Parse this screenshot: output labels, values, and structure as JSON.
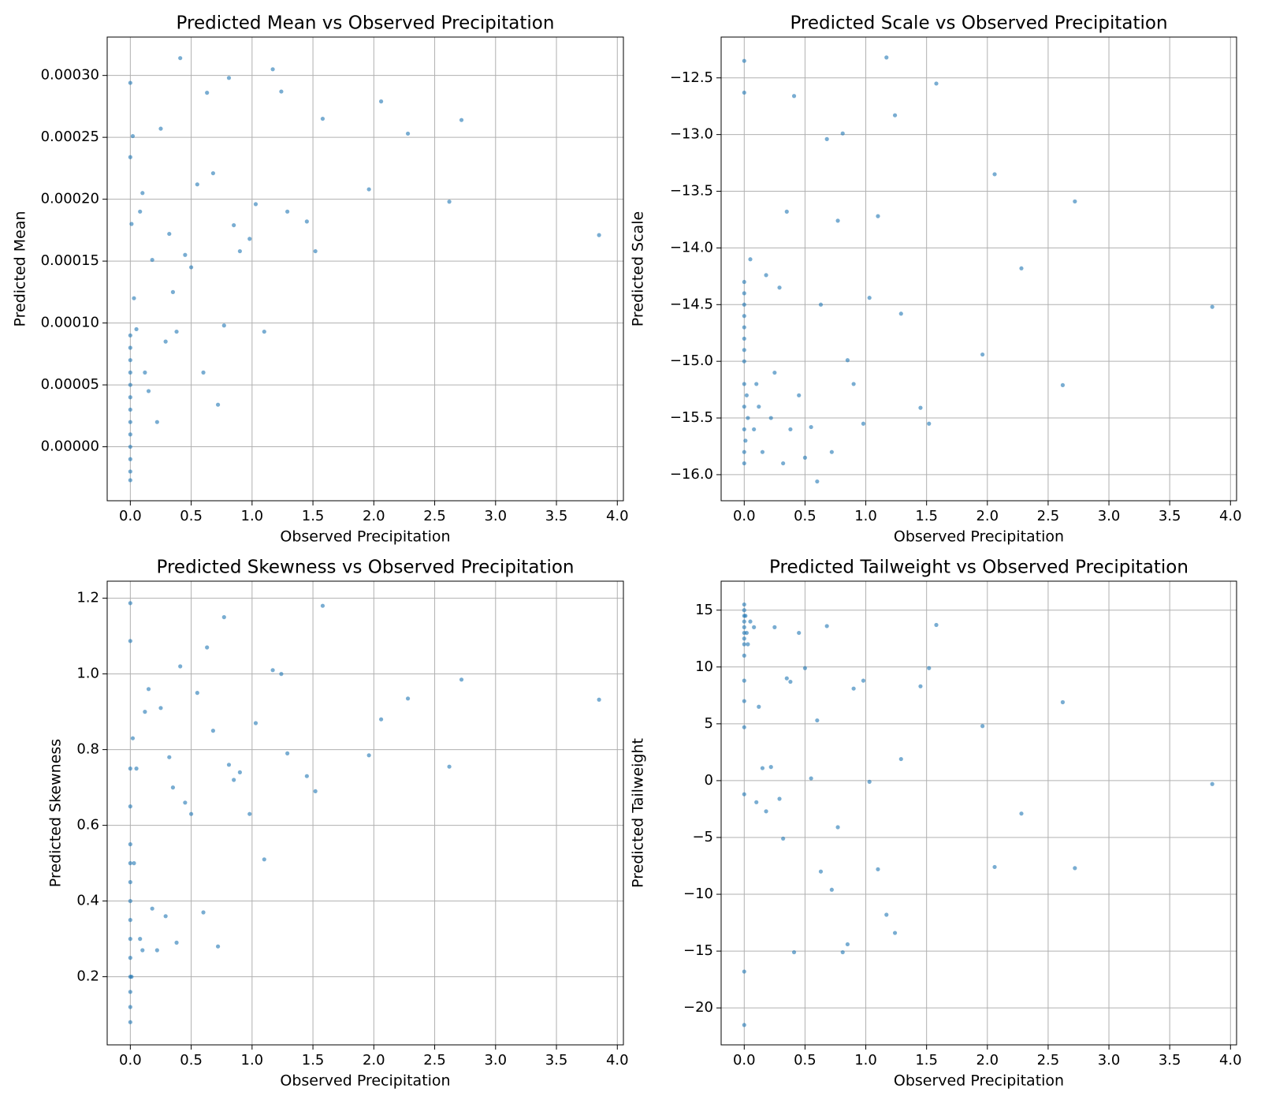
{
  "chart_data": [
    {
      "type": "scatter",
      "title": "Predicted Mean vs Observed Precipitation",
      "x_label": "Observed Precipitation",
      "y_label": "Predicted Mean",
      "color": "#1f77b4",
      "grid": true,
      "xlim": [
        -0.19,
        4.05
      ],
      "ylim": [
        -4.36e-05,
        0.000331
      ],
      "xticks": [
        {
          "value": 0,
          "label": "0.0"
        },
        0.5,
        {
          "value": 1,
          "label": "1.0"
        },
        1.5,
        {
          "value": 2,
          "label": "2.0"
        },
        2.5,
        {
          "value": 3,
          "label": "3.0"
        },
        3.5,
        {
          "value": 4,
          "label": "4.0"
        }
      ],
      "yticks": [
        {
          "value": 0,
          "label": "0.00000"
        },
        {
          "value": 5e-05,
          "label": "0.00005"
        },
        {
          "value": 0.0001,
          "label": "0.00010"
        },
        {
          "value": 0.00015,
          "label": "0.00015"
        },
        {
          "value": 0.0002,
          "label": "0.00020"
        },
        {
          "value": 0.00025,
          "label": "0.00025"
        },
        {
          "value": 0.0003,
          "label": "0.00030"
        }
      ],
      "x": [
        0,
        0,
        0,
        0,
        0,
        0,
        0,
        0,
        0,
        0,
        0,
        0,
        0,
        0,
        0,
        0.01,
        0.02,
        0.03,
        0.05,
        0.08,
        0.1,
        0.12,
        0.15,
        0.18,
        0.22,
        0.25,
        0.29,
        0.32,
        0.35,
        0.38,
        0.41,
        0.45,
        0.5,
        0.55,
        0.6,
        0.63,
        0.68,
        0.72,
        0.77,
        0.81,
        0.85,
        0.9,
        0.98,
        1.03,
        1.1,
        1.17,
        1.24,
        1.29,
        1.45,
        1.52,
        1.58,
        1.96,
        2.06,
        2.28,
        2.62,
        2.72,
        3.85
      ],
      "values": [
        -2.7e-05,
        -2e-05,
        -1e-05,
        0,
        1e-05,
        2e-05,
        3e-05,
        4e-05,
        5e-05,
        6e-05,
        7e-05,
        8e-05,
        9e-05,
        0.000234,
        0.000294,
        0.00018,
        0.000251,
        0.00012,
        9.5e-05,
        0.00019,
        0.000205,
        6e-05,
        4.5e-05,
        0.000151,
        2e-05,
        0.000257,
        8.5e-05,
        0.000172,
        0.000125,
        9.3e-05,
        0.000314,
        0.000155,
        0.000145,
        0.000212,
        6e-05,
        0.000286,
        0.000221,
        3.4e-05,
        9.8e-05,
        0.000298,
        0.000179,
        0.000158,
        0.000168,
        0.000196,
        9.3e-05,
        0.000305,
        0.000287,
        0.00019,
        0.000182,
        0.000158,
        0.000265,
        0.000208,
        0.000279,
        0.000253,
        0.000198,
        0.000264,
        0.000171
      ]
    },
    {
      "type": "scatter",
      "title": "Predicted Scale vs Observed Precipitation",
      "x_label": "Observed Precipitation",
      "y_label": "Predicted Scale",
      "color": "#1f77b4",
      "grid": true,
      "xlim": [
        -0.19,
        4.05
      ],
      "ylim": [
        -16.23,
        -12.14
      ],
      "xticks": [
        {
          "value": 0,
          "label": "0.0"
        },
        0.5,
        {
          "value": 1,
          "label": "1.0"
        },
        1.5,
        {
          "value": 2,
          "label": "2.0"
        },
        2.5,
        {
          "value": 3,
          "label": "3.0"
        },
        3.5,
        {
          "value": 4,
          "label": "4.0"
        }
      ],
      "yticks": [
        {
          "value": -16,
          "label": "−16.0"
        },
        {
          "value": -15.5,
          "label": "−15.5"
        },
        {
          "value": -15,
          "label": "−15.0"
        },
        {
          "value": -14.5,
          "label": "−14.5"
        },
        {
          "value": -14,
          "label": "−14.0"
        },
        {
          "value": -13.5,
          "label": "−13.5"
        },
        {
          "value": -13,
          "label": "−13.0"
        },
        {
          "value": -12.5,
          "label": "−12.5"
        }
      ],
      "x": [
        0,
        0,
        0,
        0,
        0,
        0,
        0,
        0,
        0,
        0,
        0,
        0,
        0,
        0,
        0,
        0.01,
        0.02,
        0.03,
        0.05,
        0.08,
        0.1,
        0.12,
        0.15,
        0.18,
        0.22,
        0.25,
        0.29,
        0.32,
        0.35,
        0.38,
        0.41,
        0.45,
        0.5,
        0.55,
        0.6,
        0.63,
        0.68,
        0.72,
        0.77,
        0.81,
        0.85,
        0.9,
        0.98,
        1.03,
        1.1,
        1.17,
        1.24,
        1.29,
        1.45,
        1.52,
        1.58,
        1.96,
        2.06,
        2.28,
        2.62,
        2.72,
        3.85
      ],
      "values": [
        -15.9,
        -15.8,
        -15.6,
        -15.4,
        -15.2,
        -15.0,
        -14.9,
        -14.8,
        -14.7,
        -14.6,
        -14.5,
        -14.4,
        -14.3,
        -12.63,
        -12.35,
        -15.7,
        -15.3,
        -15.5,
        -14.1,
        -15.6,
        -15.2,
        -15.4,
        -15.8,
        -14.24,
        -15.5,
        -15.1,
        -14.35,
        -15.9,
        -13.68,
        -15.6,
        -12.66,
        -15.3,
        -15.85,
        -15.58,
        -16.06,
        -14.5,
        -13.04,
        -15.8,
        -13.76,
        -12.99,
        -14.99,
        -15.2,
        -15.55,
        -14.44,
        -13.72,
        -12.32,
        -12.83,
        -14.58,
        -15.41,
        -15.55,
        -12.55,
        -14.94,
        -13.35,
        -14.18,
        -15.21,
        -13.59,
        -14.52
      ]
    },
    {
      "type": "scatter",
      "title": "Predicted Skewness vs Observed Precipitation",
      "x_label": "Observed Precipitation",
      "y_label": "Predicted Skewness",
      "color": "#1f77b4",
      "grid": true,
      "xlim": [
        -0.19,
        4.05
      ],
      "ylim": [
        0.02,
        1.245
      ],
      "xticks": [
        {
          "value": 0,
          "label": "0.0"
        },
        0.5,
        {
          "value": 1,
          "label": "1.0"
        },
        1.5,
        {
          "value": 2,
          "label": "2.0"
        },
        2.5,
        {
          "value": 3,
          "label": "3.0"
        },
        3.5,
        {
          "value": 4,
          "label": "4.0"
        }
      ],
      "yticks": [
        0.2,
        0.4,
        0.6,
        0.8,
        {
          "value": 1,
          "label": "1.0"
        },
        1.2
      ],
      "x": [
        0,
        0,
        0,
        0,
        0,
        0,
        0,
        0,
        0,
        0,
        0,
        0,
        0,
        0,
        0,
        0.01,
        0.02,
        0.03,
        0.05,
        0.08,
        0.1,
        0.12,
        0.15,
        0.18,
        0.22,
        0.25,
        0.29,
        0.32,
        0.35,
        0.38,
        0.41,
        0.45,
        0.5,
        0.55,
        0.6,
        0.63,
        0.68,
        0.72,
        0.77,
        0.81,
        0.85,
        0.9,
        0.98,
        1.03,
        1.1,
        1.17,
        1.24,
        1.29,
        1.45,
        1.52,
        1.58,
        1.96,
        2.06,
        2.28,
        2.62,
        2.72,
        3.85
      ],
      "values": [
        0.08,
        0.12,
        0.16,
        0.2,
        0.25,
        0.3,
        0.35,
        0.4,
        0.45,
        0.5,
        0.55,
        0.65,
        0.75,
        1.087,
        1.187,
        0.2,
        0.83,
        0.5,
        0.75,
        0.3,
        0.27,
        0.9,
        0.96,
        0.38,
        0.27,
        0.91,
        0.36,
        0.78,
        0.7,
        0.29,
        1.02,
        0.66,
        0.63,
        0.95,
        0.37,
        1.07,
        0.85,
        0.28,
        1.15,
        0.76,
        0.72,
        0.74,
        0.63,
        0.87,
        0.51,
        1.01,
        1.0,
        0.79,
        0.73,
        0.69,
        1.18,
        0.785,
        0.88,
        0.935,
        0.755,
        0.985,
        0.932
      ]
    },
    {
      "type": "scatter",
      "title": "Predicted Tailweight vs Observed Precipitation",
      "x_label": "Observed Precipitation",
      "y_label": "Predicted Tailweight",
      "color": "#1f77b4",
      "grid": true,
      "xlim": [
        -0.19,
        4.05
      ],
      "ylim": [
        -23.25,
        17.55
      ],
      "xticks": [
        {
          "value": 0,
          "label": "0.0"
        },
        0.5,
        {
          "value": 1,
          "label": "1.0"
        },
        1.5,
        {
          "value": 2,
          "label": "2.0"
        },
        2.5,
        {
          "value": 3,
          "label": "3.0"
        },
        3.5,
        {
          "value": 4,
          "label": "4.0"
        }
      ],
      "yticks": [
        {
          "value": -20,
          "label": "−20"
        },
        {
          "value": -15,
          "label": "−15"
        },
        {
          "value": -10,
          "label": "−10"
        },
        {
          "value": -5,
          "label": "−5"
        },
        0,
        5,
        10,
        15
      ],
      "x": [
        0,
        0,
        0,
        0,
        0,
        0,
        0,
        0,
        0,
        0,
        0,
        0,
        0,
        0,
        0,
        0.01,
        0.02,
        0.03,
        0.05,
        0.08,
        0.1,
        0.12,
        0.15,
        0.18,
        0.22,
        0.25,
        0.29,
        0.32,
        0.35,
        0.38,
        0.41,
        0.45,
        0.5,
        0.55,
        0.6,
        0.63,
        0.68,
        0.72,
        0.77,
        0.81,
        0.85,
        0.9,
        0.98,
        1.03,
        1.1,
        1.17,
        1.24,
        1.29,
        1.45,
        1.52,
        1.58,
        1.96,
        2.06,
        2.28,
        2.62,
        2.72,
        3.85
      ],
      "values": [
        15.5,
        15,
        14.5,
        14,
        13.5,
        13,
        12.5,
        12,
        11,
        8.8,
        7,
        4.7,
        -1.2,
        -16.8,
        -21.5,
        14.5,
        13,
        12,
        14,
        13.5,
        -1.9,
        6.5,
        1.1,
        -2.7,
        1.2,
        13.5,
        -1.6,
        -5.1,
        9,
        8.7,
        -15.1,
        13,
        9.9,
        0.2,
        5.3,
        -8,
        13.6,
        -9.6,
        -4.1,
        -15.1,
        -14.4,
        8.1,
        8.8,
        -0.1,
        -7.8,
        -11.8,
        -13.4,
        1.9,
        8.3,
        9.9,
        13.7,
        4.8,
        -7.6,
        -2.9,
        6.9,
        -7.7,
        -0.3
      ]
    }
  ]
}
